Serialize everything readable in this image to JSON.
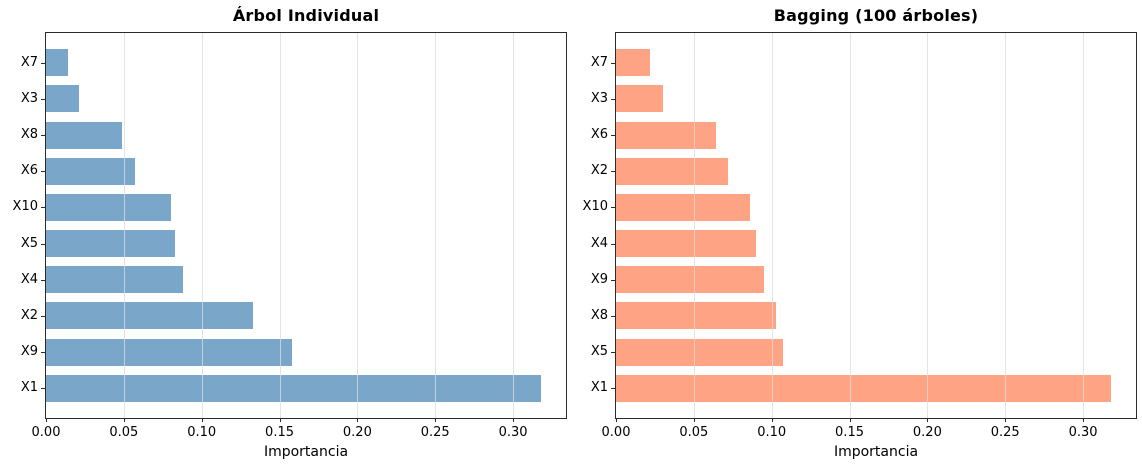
{
  "figure": {
    "background": "#ffffff",
    "description": "Two side-by-side horizontal bar charts comparing feature importances"
  },
  "chart_data": [
    {
      "type": "bar",
      "orientation": "horizontal",
      "title": "Árbol Individual",
      "xlabel": "Importancia",
      "row_order": "top-to-bottom",
      "categories": [
        "X7",
        "X3",
        "X8",
        "X6",
        "X10",
        "X5",
        "X4",
        "X2",
        "X9",
        "X1"
      ],
      "values": [
        0.014,
        0.021,
        0.049,
        0.057,
        0.08,
        0.083,
        0.088,
        0.133,
        0.158,
        0.318
      ],
      "bar_color": "#7aa6ca",
      "xlim": [
        0,
        0.334
      ],
      "xticks": [
        0,
        0.05,
        0.1,
        0.15,
        0.2,
        0.25,
        0.3
      ],
      "xtick_labels": [
        "0.00",
        "0.05",
        "0.10",
        "0.15",
        "0.20",
        "0.25",
        "0.30"
      ],
      "grid": "vertical gridlines at x ticks, light gray, drawn over bars",
      "legend": "none"
    },
    {
      "type": "bar",
      "orientation": "horizontal",
      "title": "Bagging (100 árboles)",
      "xlabel": "Importancia",
      "row_order": "top-to-bottom",
      "categories": [
        "X7",
        "X3",
        "X6",
        "X2",
        "X10",
        "X4",
        "X9",
        "X8",
        "X5",
        "X1"
      ],
      "values": [
        0.022,
        0.03,
        0.064,
        0.072,
        0.086,
        0.09,
        0.095,
        0.103,
        0.107,
        0.318
      ],
      "bar_color": "#ffa385",
      "xlim": [
        0,
        0.334
      ],
      "xticks": [
        0,
        0.05,
        0.1,
        0.15,
        0.2,
        0.25,
        0.3
      ],
      "xtick_labels": [
        "0.00",
        "0.05",
        "0.10",
        "0.15",
        "0.20",
        "0.25",
        "0.30"
      ],
      "grid": "vertical gridlines at x ticks, light gray, drawn over bars",
      "legend": "none"
    }
  ]
}
